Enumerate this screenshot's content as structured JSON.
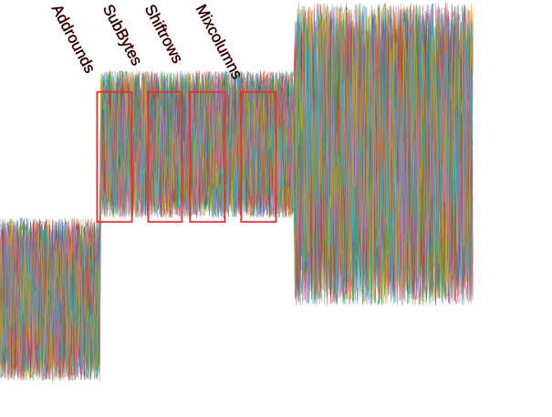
{
  "chart_data": {
    "type": "line",
    "title": "",
    "xlabel": "",
    "ylabel": "",
    "legend": "none",
    "grid": false,
    "axes_visible": false,
    "x_range": [
      0,
      1000
    ],
    "y_range": [
      -1.0,
      1.0
    ],
    "trace_count": 60,
    "segments": [
      {
        "x": [
          0,
          195
        ],
        "y_mean_center": -0.45,
        "y_spread": 0.42
      },
      {
        "x": [
          195,
          575
        ],
        "y_mean_center": 0.35,
        "y_spread": 0.38
      },
      {
        "x": [
          575,
          925
        ],
        "y_mean_center": 0.3,
        "y_spread": 0.78
      }
    ],
    "highlight_color": "#e53030",
    "annotations": [
      {
        "label": "Addrounds",
        "x_start": 190,
        "x_end": 258
      },
      {
        "label": "SubBytes",
        "x_start": 290,
        "x_end": 356
      },
      {
        "label": "Shiftrows",
        "x_start": 372,
        "x_end": 440
      },
      {
        "label": "Mixcolumns",
        "x_start": 472,
        "x_end": 540
      }
    ],
    "highlight_y_range": [
      -0.05,
      0.62
    ],
    "palette": [
      "#1f77b4",
      "#ff7f0e",
      "#2ca02c",
      "#d62728",
      "#9467bd",
      "#8c564b",
      "#e377c2",
      "#17becf",
      "#bcbd22",
      "#7f7f7f"
    ]
  }
}
